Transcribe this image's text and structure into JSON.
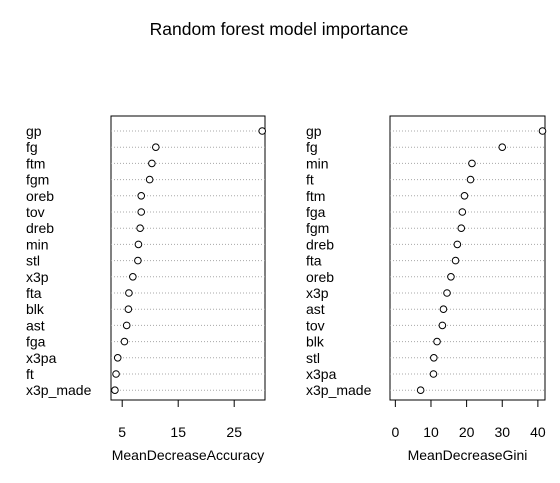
{
  "title": "Random forest model importance",
  "chart_data": [
    {
      "type": "scatter",
      "xlabel": "MeanDecreaseAccuracy",
      "ylabel": "",
      "xlim": [
        3,
        30.5
      ],
      "xticks": [
        "5",
        "15",
        "25"
      ],
      "xtick_values": [
        5,
        15,
        25
      ],
      "grid": "dotted horizontal",
      "categories": [
        "gp",
        "fg",
        "ftm",
        "fgm",
        "oreb",
        "tov",
        "dreb",
        "min",
        "stl",
        "x3p",
        "fta",
        "blk",
        "ast",
        "fga",
        "x3pa",
        "ft",
        "x3p_made"
      ],
      "values": [
        30.0,
        11.0,
        10.3,
        9.9,
        8.4,
        8.4,
        8.2,
        7.9,
        7.8,
        6.9,
        6.2,
        6.1,
        5.8,
        5.4,
        4.2,
        3.9,
        3.7
      ]
    },
    {
      "type": "scatter",
      "xlabel": "MeanDecreaseGini",
      "ylabel": "",
      "xlim": [
        -1.5,
        42
      ],
      "xticks": [
        "0",
        "10",
        "20",
        "30",
        "40"
      ],
      "xtick_values": [
        0,
        10,
        20,
        30,
        40
      ],
      "grid": "dotted horizontal",
      "categories": [
        "gp",
        "fg",
        "min",
        "ft",
        "ftm",
        "fga",
        "fgm",
        "dreb",
        "fta",
        "oreb",
        "x3p",
        "ast",
        "tov",
        "blk",
        "stl",
        "x3pa",
        "x3p_made"
      ],
      "values": [
        41.3,
        30.0,
        21.5,
        21.1,
        19.4,
        18.8,
        18.5,
        17.4,
        16.9,
        15.6,
        14.5,
        13.5,
        13.2,
        11.7,
        10.8,
        10.7,
        7.1
      ]
    }
  ]
}
